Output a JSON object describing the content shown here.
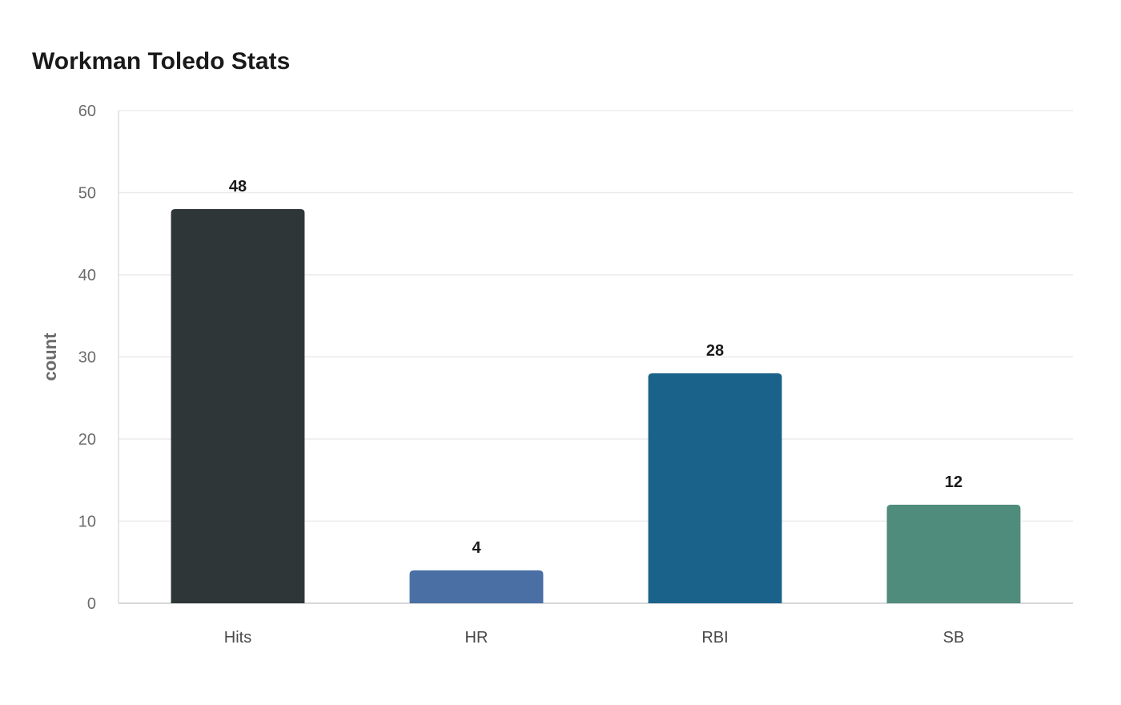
{
  "chart_data": {
    "type": "bar",
    "title": "Workman Toledo Stats",
    "xlabel": "",
    "ylabel": "count",
    "categories": [
      "Hits",
      "HR",
      "RBI",
      "SB"
    ],
    "values": [
      48,
      4,
      28,
      12
    ],
    "data_labels": [
      "48",
      "4",
      "28",
      "12"
    ],
    "colors": [
      "#2e3638",
      "#4a6fa5",
      "#1a6289",
      "#4f8c7b"
    ],
    "ylim": [
      0,
      60
    ],
    "yticks": [
      0,
      10,
      20,
      30,
      40,
      50,
      60
    ],
    "grid": true,
    "legend": "none"
  }
}
